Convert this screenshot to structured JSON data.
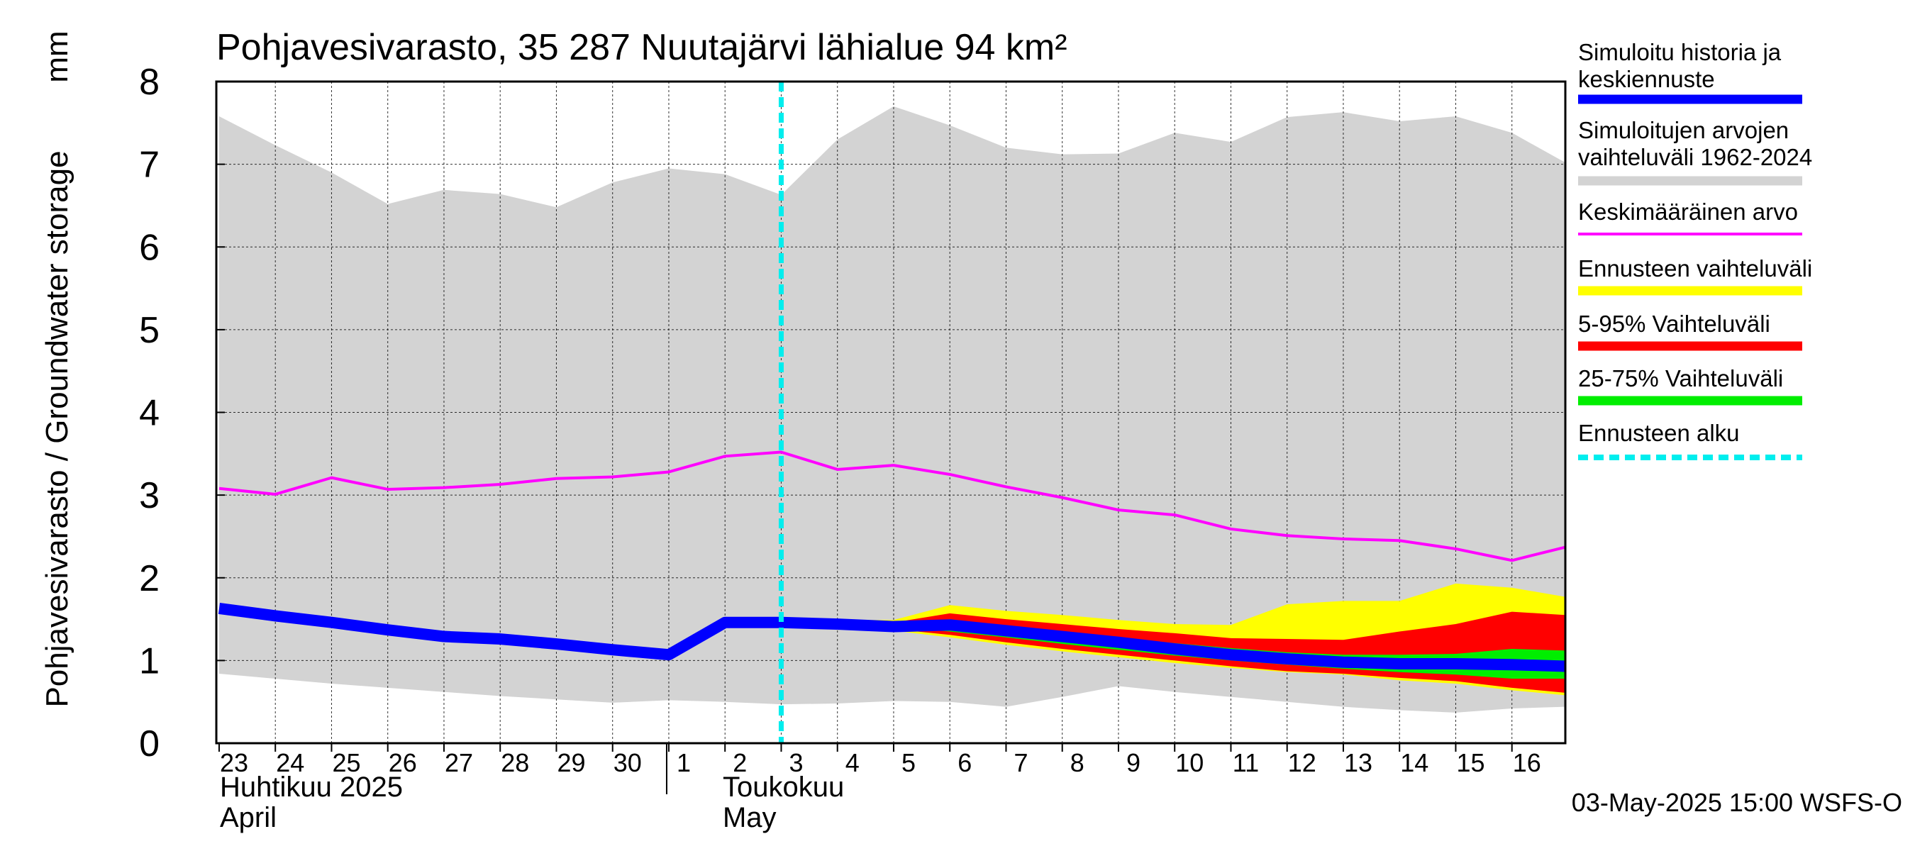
{
  "chart_data": {
    "type": "area",
    "title": "Pohjavesivarasto, 35 287 Nuutajärvi lähialue 94 km²",
    "ylabel": "Pohjavesivarasto / Groundwater storage",
    "yunit": "mm",
    "ylim": [
      0,
      8
    ],
    "yticks": [
      0,
      1,
      2,
      3,
      4,
      5,
      6,
      7,
      8
    ],
    "xlim": [
      -0.05,
      23.95
    ],
    "x_tick_labels": [
      "23",
      "24",
      "25",
      "26",
      "27",
      "28",
      "29",
      "30",
      "1",
      "2",
      "3",
      "4",
      "5",
      "6",
      "7",
      "8",
      "9",
      "10",
      "11",
      "12",
      "13",
      "14",
      "15",
      "16"
    ],
    "month_labels": [
      {
        "fi": "Huhtikuu  2025",
        "en": "April"
      },
      {
        "fi": "Toukokuu",
        "en": "May"
      }
    ],
    "grid": true,
    "legend_placement": "right",
    "forecast_start": 10.0,
    "footer": "03-May-2025 15:00 WSFS-O",
    "colors": {
      "history": "#0000ff",
      "range": "#d3d3d3",
      "mean": "#ff00ff",
      "forecast_range": "#ffff00",
      "p5_95": "#ff0000",
      "p25_75": "#00ee00",
      "forecast_start": "#00eeee"
    },
    "legend": [
      {
        "key": "history",
        "lines": [
          "Simuloitu historia ja",
          "keskiennuste"
        ],
        "style": "thick"
      },
      {
        "key": "range",
        "lines": [
          "Simuloitujen arvojen",
          "vaihteluväli 1962-2024"
        ],
        "style": "thick"
      },
      {
        "key": "mean",
        "lines": [
          "Keskimääräinen arvo"
        ],
        "style": "thin"
      },
      {
        "key": "forecast_range",
        "lines": [
          "Ennusteen vaihteluväli"
        ],
        "style": "thick"
      },
      {
        "key": "p5_95",
        "lines": [
          "5-95% Vaihteluväli"
        ],
        "style": "thick"
      },
      {
        "key": "p25_75",
        "lines": [
          "25-75% Vaihteluväli"
        ],
        "style": "thick"
      },
      {
        "key": "forecast_start",
        "lines": [
          "Ennusteen alku"
        ],
        "style": "dashed"
      }
    ],
    "series": {
      "range_upper": {
        "x": [
          0,
          1,
          2,
          3,
          4,
          5,
          6,
          7,
          8,
          9,
          10,
          11,
          12,
          13,
          14,
          15,
          16,
          17,
          18,
          19,
          20,
          21,
          22,
          23,
          23.95
        ],
        "y": [
          7.58,
          7.23,
          6.9,
          6.52,
          6.69,
          6.64,
          6.48,
          6.78,
          6.95,
          6.88,
          6.63,
          7.3,
          7.7,
          7.47,
          7.2,
          7.12,
          7.13,
          7.38,
          7.27,
          7.57,
          7.63,
          7.52,
          7.58,
          7.38,
          7.02
        ]
      },
      "range_lower": {
        "x": [
          0,
          1,
          2,
          3,
          4,
          5,
          6,
          7,
          8,
          9,
          10,
          11,
          12,
          13,
          14,
          15,
          16,
          17,
          18,
          19,
          20,
          21,
          22,
          23,
          23.95
        ],
        "y": [
          0.84,
          0.78,
          0.72,
          0.67,
          0.62,
          0.57,
          0.53,
          0.49,
          0.52,
          0.5,
          0.47,
          0.48,
          0.51,
          0.5,
          0.44,
          0.56,
          0.69,
          0.62,
          0.56,
          0.5,
          0.44,
          0.4,
          0.37,
          0.42,
          0.44
        ]
      },
      "mean": {
        "x": [
          0,
          1,
          2,
          3,
          4,
          5,
          6,
          7,
          8,
          9,
          10,
          11,
          12,
          13,
          14,
          15,
          16,
          17,
          18,
          19,
          20,
          21,
          22,
          23,
          23.95
        ],
        "y": [
          3.08,
          3.01,
          3.21,
          3.07,
          3.09,
          3.13,
          3.2,
          3.22,
          3.28,
          3.47,
          3.52,
          3.31,
          3.36,
          3.25,
          3.1,
          2.97,
          2.82,
          2.76,
          2.59,
          2.51,
          2.47,
          2.45,
          2.35,
          2.21,
          2.37
        ]
      },
      "history": {
        "x": [
          0,
          1,
          2,
          3,
          4,
          5,
          6,
          7,
          8,
          9,
          10
        ],
        "y": [
          1.63,
          1.54,
          1.46,
          1.37,
          1.29,
          1.26,
          1.2,
          1.13,
          1.07,
          1.46,
          1.46
        ]
      },
      "forecast_range_upper": {
        "x": [
          10,
          11,
          12,
          13,
          14,
          15,
          16,
          17,
          18,
          19,
          20,
          21,
          22,
          23,
          23.95
        ],
        "y": [
          1.51,
          1.49,
          1.49,
          1.67,
          1.6,
          1.55,
          1.49,
          1.44,
          1.43,
          1.68,
          1.72,
          1.72,
          1.93,
          1.88,
          1.77
        ]
      },
      "forecast_range_lower": {
        "x": [
          10,
          11,
          12,
          13,
          14,
          15,
          16,
          17,
          18,
          19,
          20,
          21,
          22,
          23,
          23.95
        ],
        "y": [
          1.44,
          1.43,
          1.36,
          1.28,
          1.19,
          1.11,
          1.04,
          0.97,
          0.91,
          0.86,
          0.83,
          0.76,
          0.72,
          0.64,
          0.58
        ]
      },
      "p5_95_upper": {
        "x": [
          10,
          11,
          12,
          13,
          14,
          15,
          16,
          17,
          18,
          19,
          20,
          21,
          22,
          23,
          23.95
        ],
        "y": [
          1.48,
          1.46,
          1.46,
          1.57,
          1.5,
          1.44,
          1.38,
          1.33,
          1.27,
          1.26,
          1.25,
          1.35,
          1.44,
          1.59,
          1.55
        ]
      },
      "p5_95_lower": {
        "x": [
          10,
          11,
          12,
          13,
          14,
          15,
          16,
          17,
          18,
          19,
          20,
          21,
          22,
          23,
          23.95
        ],
        "y": [
          1.45,
          1.44,
          1.38,
          1.31,
          1.22,
          1.14,
          1.07,
          1.0,
          0.93,
          0.87,
          0.84,
          0.79,
          0.75,
          0.67,
          0.61
        ]
      },
      "p25_75_upper": {
        "x": [
          10,
          11,
          12,
          13,
          14,
          15,
          16,
          17,
          18,
          19,
          20,
          21,
          22,
          23,
          23.95
        ],
        "y": [
          1.47,
          1.45,
          1.43,
          1.5,
          1.42,
          1.35,
          1.28,
          1.21,
          1.15,
          1.1,
          1.07,
          1.07,
          1.08,
          1.14,
          1.12
        ]
      },
      "p25_75_lower": {
        "x": [
          10,
          11,
          12,
          13,
          14,
          15,
          16,
          17,
          18,
          19,
          20,
          21,
          22,
          23,
          23.95
        ],
        "y": [
          1.46,
          1.44,
          1.4,
          1.35,
          1.28,
          1.2,
          1.13,
          1.06,
          1.0,
          0.95,
          0.9,
          0.86,
          0.83,
          0.78,
          0.78
        ]
      },
      "median": {
        "x": [
          10,
          11,
          12,
          13,
          14,
          15,
          16,
          17,
          18,
          19,
          20,
          21,
          22,
          23,
          23.95
        ],
        "y": [
          1.46,
          1.44,
          1.41,
          1.43,
          1.36,
          1.29,
          1.22,
          1.14,
          1.07,
          1.02,
          0.98,
          0.96,
          0.96,
          0.95,
          0.93
        ]
      }
    }
  }
}
